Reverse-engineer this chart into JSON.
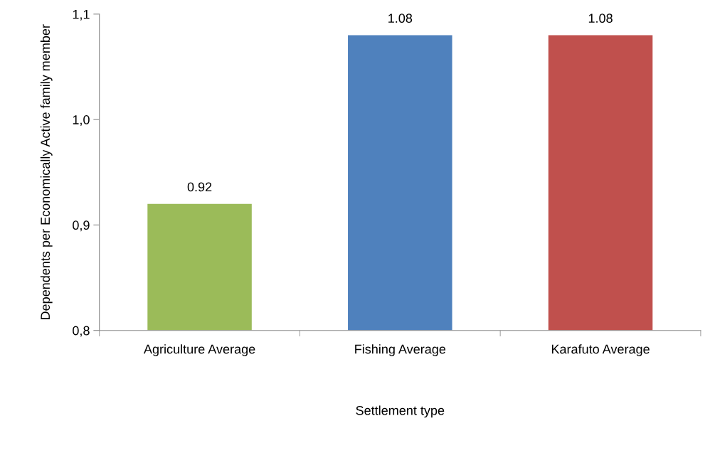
{
  "chart_data": {
    "type": "bar",
    "xlabel": "Settlement type",
    "ylabel": "Dependents per Economically Active family member",
    "categories": [
      "Agriculture Average",
      "Fishing Average",
      "Karafuto Average"
    ],
    "values": [
      0.92,
      1.08,
      1.08
    ],
    "colors": [
      "#9bbb59",
      "#4f81bd",
      "#c0504d"
    ],
    "ylim": [
      0.8,
      1.1
    ],
    "yticks": [
      {
        "value": 0.8,
        "label": "0,8"
      },
      {
        "value": 0.9,
        "label": "0,9"
      },
      {
        "value": 1.0,
        "label": "1,0"
      },
      {
        "value": 1.1,
        "label": "1,1"
      }
    ],
    "data_labels": true,
    "grid": false,
    "legend": false
  }
}
